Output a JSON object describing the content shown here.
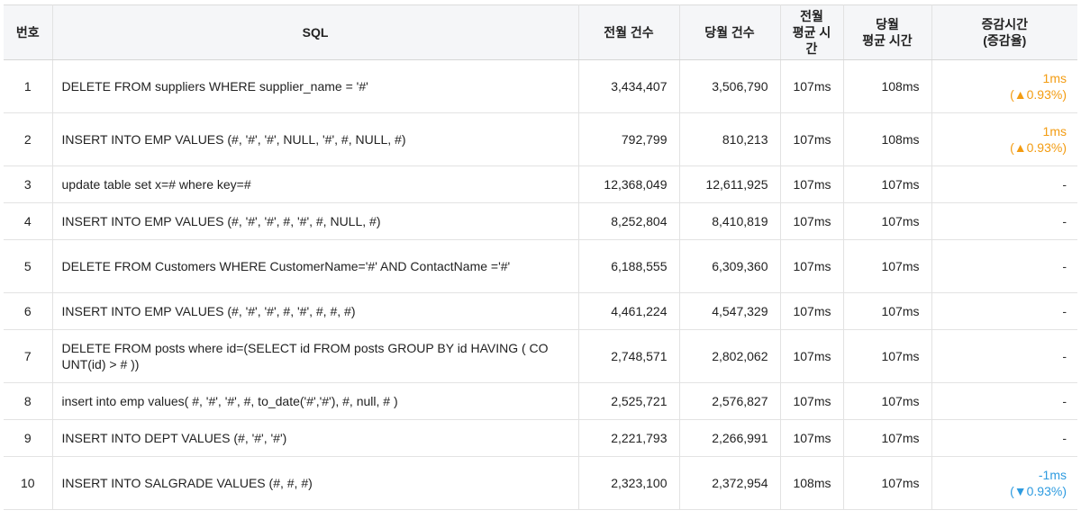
{
  "headers": {
    "num": "번호",
    "sql": "SQL",
    "prev_count": "전월 건수",
    "curr_count": "당월 건수",
    "prev_avg_line1": "전월",
    "prev_avg_line2": "평균 시간",
    "curr_avg_line1": "당월",
    "curr_avg_line2": "평균 시간",
    "delta_line1": "증감시간",
    "delta_line2": "(증감율)"
  },
  "rows": [
    {
      "num": "1",
      "sql": "DELETE FROM suppliers WHERE supplier_name = '#'",
      "prev_count": "3,434,407",
      "curr_count": "3,506,790",
      "prev_avg": "107ms",
      "curr_avg": "108ms",
      "delta": "1ms",
      "rate": "(▲0.93%)",
      "trend": "up"
    },
    {
      "num": "2",
      "sql": "INSERT INTO EMP VALUES (#, '#', '#', NULL, '#', #, NULL, #)",
      "prev_count": "792,799",
      "curr_count": "810,213",
      "prev_avg": "107ms",
      "curr_avg": "108ms",
      "delta": "1ms",
      "rate": "(▲0.93%)",
      "trend": "up"
    },
    {
      "num": "3",
      "sql": "update table set x=# where key=#",
      "prev_count": "12,368,049",
      "curr_count": "12,611,925",
      "prev_avg": "107ms",
      "curr_avg": "107ms",
      "delta": "-",
      "rate": "",
      "trend": "none"
    },
    {
      "num": "4",
      "sql": "INSERT INTO EMP VALUES (#, '#', '#', #, '#', #, NULL, #)",
      "prev_count": "8,252,804",
      "curr_count": "8,410,819",
      "prev_avg": "107ms",
      "curr_avg": "107ms",
      "delta": "-",
      "rate": "",
      "trend": "none"
    },
    {
      "num": "5",
      "sql": "DELETE FROM Customers WHERE CustomerName='#' AND ContactName ='#'",
      "prev_count": "6,188,555",
      "curr_count": "6,309,360",
      "prev_avg": "107ms",
      "curr_avg": "107ms",
      "delta": "-",
      "rate": "",
      "trend": "none"
    },
    {
      "num": "6",
      "sql": "INSERT INTO EMP VALUES (#, '#', '#', #, '#', #, #, #)",
      "prev_count": "4,461,224",
      "curr_count": "4,547,329",
      "prev_avg": "107ms",
      "curr_avg": "107ms",
      "delta": "-",
      "rate": "",
      "trend": "none"
    },
    {
      "num": "7",
      "sql": "DELETE FROM posts where id=(SELECT id FROM posts GROUP BY id HAVING ( COUNT(id) > # ))",
      "prev_count": "2,748,571",
      "curr_count": "2,802,062",
      "prev_avg": "107ms",
      "curr_avg": "107ms",
      "delta": "-",
      "rate": "",
      "trend": "none"
    },
    {
      "num": "8",
      "sql": "insert into emp values( #, '#', '#', #, to_date('#','#'), #, null, # )",
      "prev_count": "2,525,721",
      "curr_count": "2,576,827",
      "prev_avg": "107ms",
      "curr_avg": "107ms",
      "delta": "-",
      "rate": "",
      "trend": "none"
    },
    {
      "num": "9",
      "sql": "INSERT INTO DEPT VALUES (#, '#', '#')",
      "prev_count": "2,221,793",
      "curr_count": "2,266,991",
      "prev_avg": "107ms",
      "curr_avg": "107ms",
      "delta": "-",
      "rate": "",
      "trend": "none"
    },
    {
      "num": "10",
      "sql": "INSERT INTO SALGRADE VALUES (#, #, #)",
      "prev_count": "2,323,100",
      "curr_count": "2,372,954",
      "prev_avg": "108ms",
      "curr_avg": "107ms",
      "delta": "-1ms",
      "rate": "(▼0.93%)",
      "trend": "down"
    }
  ],
  "colors": {
    "up": "#f39c12",
    "down": "#2e9be0",
    "header_bg": "#f5f6f8",
    "border": "#e2e2e2"
  }
}
